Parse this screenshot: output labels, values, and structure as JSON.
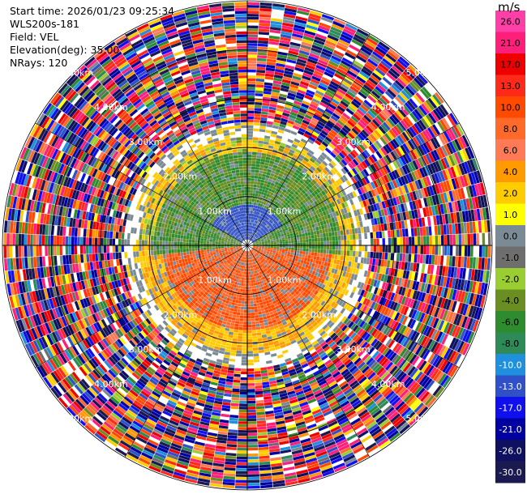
{
  "info": {
    "start_time": "Start time: 2026/01/23 09:25:34",
    "site": "WLS200s-181",
    "field": "Field: VEL",
    "elevation": "Elevation(deg): 35.00",
    "nrays": "NRays: 120"
  },
  "colorbar": {
    "unit": "m/s",
    "ticks": [
      "26.0",
      "21.0",
      "17.0",
      "13.0",
      "10.0",
      "8.0",
      "6.0",
      "4.0",
      "2.0",
      "1.0",
      "0.0",
      "-1.0",
      "-2.0",
      "-4.0",
      "-6.0",
      "-8.0",
      "-10.0",
      "-13.0",
      "-17.0",
      "-21.0",
      "-26.0",
      "-30.0"
    ],
    "colors": [
      "#ff3fa8",
      "#ff1f7a",
      "#ee0000",
      "#ff2a1a",
      "#ff4a00",
      "#ff6a2a",
      "#ff7a55",
      "#ff9a00",
      "#ffcc00",
      "#ffff00",
      "#7a8b96",
      "#6e6e6e",
      "#9acd32",
      "#6b8e23",
      "#2e8b2e",
      "#2e8b57",
      "#1e90dd",
      "#3050c8",
      "#1010ee",
      "#0000a0",
      "#101060",
      "#1a1a50"
    ]
  },
  "chart_data": {
    "type": "heatmap",
    "projection": "polar (PPI)",
    "field": "VEL",
    "elevation_deg": 35.0,
    "nrays": 120,
    "range_ring_labels": [
      "1.00km",
      "2.00km",
      "3.00km",
      "4.00km",
      "5.00km"
    ],
    "range_rings_km": [
      1,
      2,
      3,
      4,
      5
    ],
    "max_range_km": 5.0,
    "colorbar_unit": "m/s",
    "colorbar_range": [
      -30.0,
      26.0
    ],
    "structure": [
      {
        "range_km": [
          0,
          0.8
        ],
        "sector": "north",
        "values_ms": [
          -10,
          -13
        ],
        "color": "blue"
      },
      {
        "range_km": [
          0,
          2.0
        ],
        "sector": "north",
        "values_ms": [
          -6,
          -4
        ],
        "color": "green"
      },
      {
        "range_km": [
          0,
          1.7
        ],
        "sector": "south",
        "values_ms": [
          8,
          13
        ],
        "color": "orange/red"
      },
      {
        "range_km": [
          1.5,
          2.5
        ],
        "sector": "all",
        "values_ms": [
          2,
          6
        ],
        "color": "yellow"
      },
      {
        "range_km": [
          2.5,
          5.0
        ],
        "sector": "all",
        "values_ms": "noise (-30 to 26)",
        "color": "random"
      }
    ]
  }
}
